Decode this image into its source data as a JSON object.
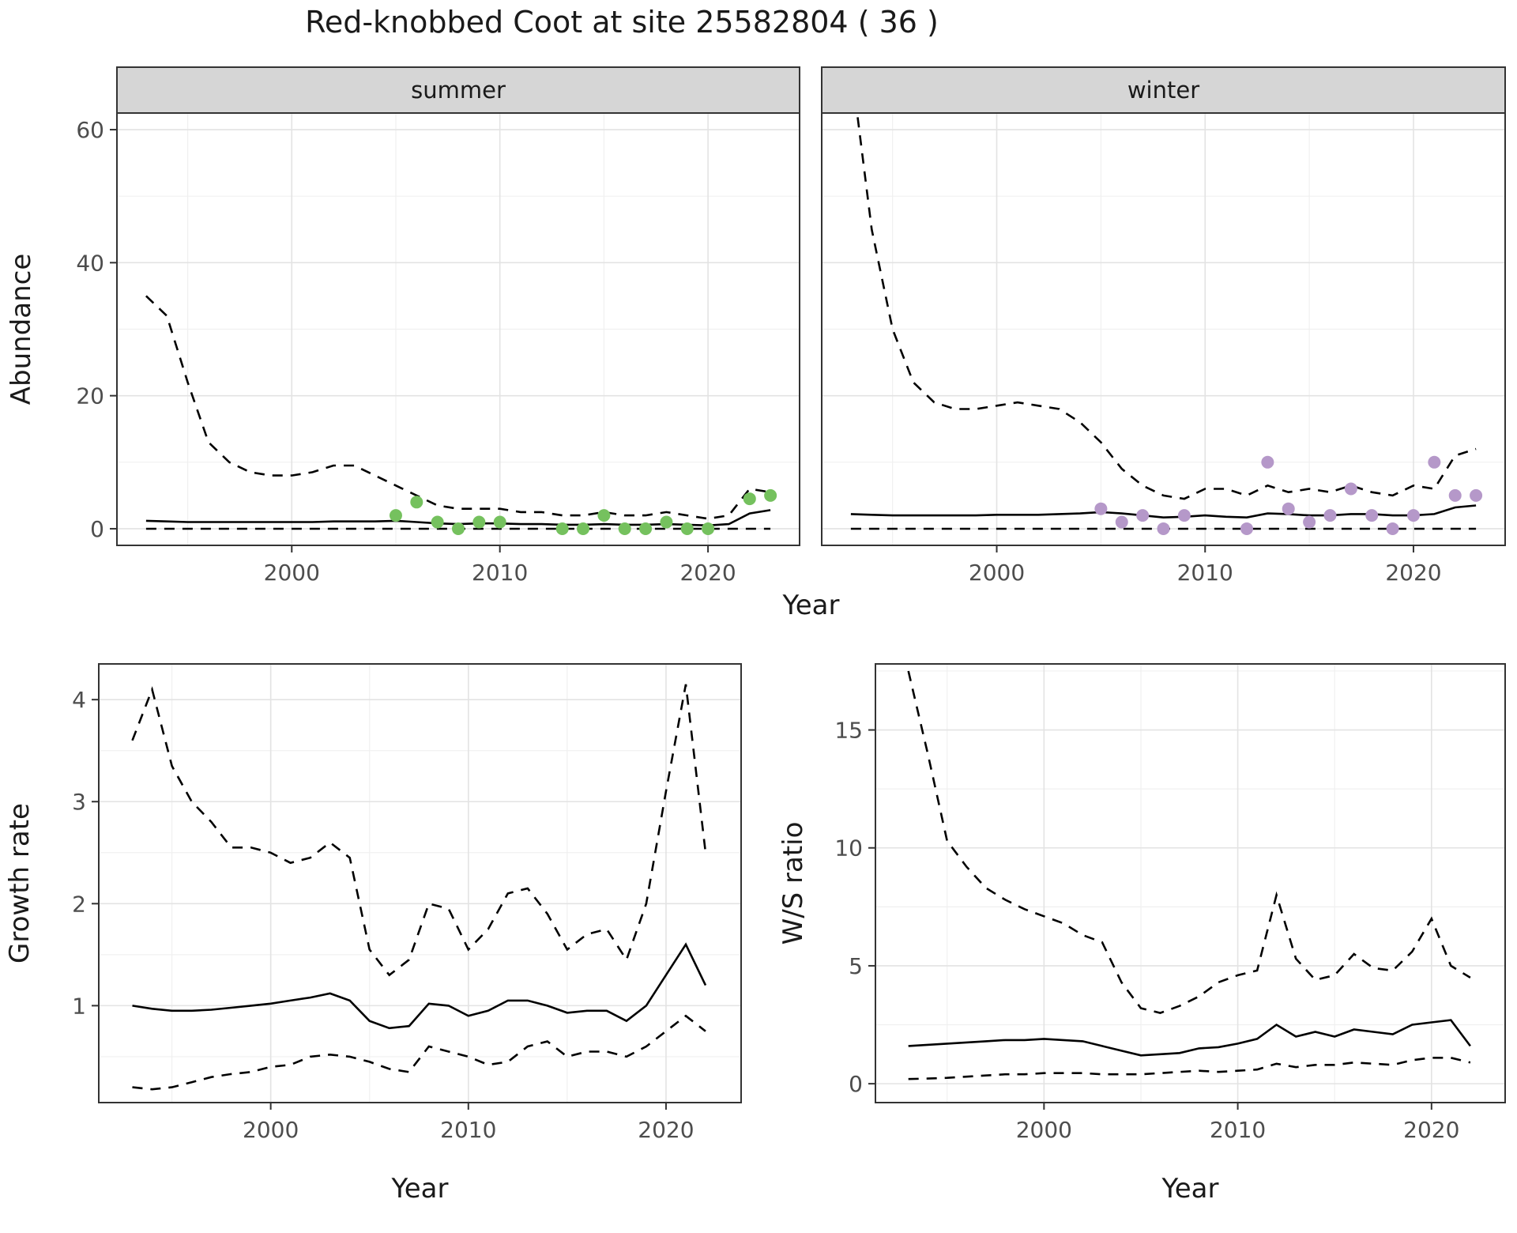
{
  "title": "Red-knobbed Coot at site 25582804 ( 36 )",
  "colors": {
    "summer_points": "#75c15e",
    "winter_points": "#b598c9",
    "line": "#000000",
    "strip_bg": "#d6d6d6",
    "grid_major": "#e3e3e3",
    "grid_minor": "#f0f0f0",
    "panel_border": "#333333",
    "axis_text": "#4d4d4d",
    "axis_title": "#1a1a1a"
  },
  "chart_data": [
    {
      "id": "abundance",
      "type": "line",
      "xlabel": "Year",
      "ylabel": "Abundance",
      "xlim": [
        1991.6,
        2024.4
      ],
      "ylim": [
        -2.5,
        62.5
      ],
      "xticks": [
        2000,
        2010,
        2020
      ],
      "yticks": [
        0,
        20,
        40,
        60
      ],
      "legend": "none",
      "grid": true,
      "panels": [
        {
          "facet": "summer",
          "point_color": "summer_points",
          "years": [
            1993,
            1994,
            1995,
            1996,
            1997,
            1998,
            1999,
            2000,
            2001,
            2002,
            2003,
            2004,
            2005,
            2006,
            2007,
            2008,
            2009,
            2010,
            2011,
            2012,
            2013,
            2014,
            2015,
            2016,
            2017,
            2018,
            2019,
            2020,
            2021,
            2022,
            2023
          ],
          "upper95": [
            35,
            32,
            22,
            13,
            10,
            8.5,
            8,
            8,
            8.5,
            9.5,
            9.5,
            8,
            6.5,
            5,
            3.5,
            3,
            3,
            3,
            2.5,
            2.5,
            2,
            2,
            2.5,
            2,
            2,
            2.5,
            2,
            1.5,
            2,
            6,
            5.5
          ],
          "median": [
            1.2,
            1.1,
            1.0,
            1.0,
            1.0,
            1.0,
            1.0,
            1.0,
            1.0,
            1.1,
            1.1,
            1.1,
            1.2,
            1.0,
            0.8,
            0.7,
            0.8,
            0.8,
            0.7,
            0.7,
            0.6,
            0.6,
            0.7,
            0.6,
            0.6,
            0.7,
            0.6,
            0.5,
            0.7,
            2.3,
            2.8
          ],
          "lower95": [
            0,
            0,
            0,
            0,
            0,
            0,
            0,
            0,
            0,
            0,
            0,
            0,
            0,
            0,
            0,
            0,
            0,
            0,
            0,
            0,
            0,
            0,
            0,
            0,
            0,
            0,
            0,
            0,
            0,
            0,
            0
          ],
          "points": {
            "x": [
              2005,
              2006,
              2007,
              2008,
              2009,
              2010,
              2013,
              2014,
              2015,
              2016,
              2017,
              2018,
              2019,
              2020,
              2022,
              2023
            ],
            "y": [
              2,
              4,
              1,
              0,
              1,
              1,
              0,
              0,
              2,
              0,
              0,
              1,
              0,
              0,
              4.5,
              5
            ]
          }
        },
        {
          "facet": "winter",
          "point_color": "winter_points",
          "years": [
            1993,
            1994,
            1995,
            1996,
            1997,
            1998,
            1999,
            2000,
            2001,
            2002,
            2003,
            2004,
            2005,
            2006,
            2007,
            2008,
            2009,
            2010,
            2011,
            2012,
            2013,
            2014,
            2015,
            2016,
            2017,
            2018,
            2019,
            2020,
            2021,
            2022,
            2023
          ],
          "upper95": [
            70,
            45,
            30,
            22,
            19,
            18,
            18,
            18.5,
            19,
            18.5,
            18,
            16,
            13,
            9,
            6.5,
            5,
            4.5,
            6,
            6,
            5,
            6.5,
            5.5,
            6,
            5.5,
            6.5,
            5.5,
            5,
            6.5,
            6,
            11,
            12
          ],
          "median": [
            2.2,
            2.1,
            2.0,
            2.0,
            2.0,
            2.0,
            2.0,
            2.1,
            2.1,
            2.1,
            2.2,
            2.3,
            2.5,
            2.3,
            2.0,
            1.7,
            1.8,
            2.0,
            1.8,
            1.7,
            2.3,
            2.2,
            2.0,
            2.0,
            2.2,
            2.2,
            2.0,
            2.0,
            2.2,
            3.2,
            3.5
          ],
          "lower95": [
            0,
            0,
            0,
            0,
            0,
            0,
            0,
            0,
            0,
            0,
            0,
            0,
            0,
            0,
            0,
            0,
            0,
            0,
            0,
            0,
            0,
            0,
            0,
            0,
            0,
            0,
            0,
            0,
            0,
            0,
            0
          ],
          "points": {
            "x": [
              2005,
              2006,
              2007,
              2008,
              2009,
              2012,
              2013,
              2014,
              2015,
              2016,
              2017,
              2018,
              2019,
              2020,
              2021,
              2022,
              2023
            ],
            "y": [
              3,
              1,
              2,
              0,
              2,
              0,
              10,
              3,
              1,
              2,
              6,
              2,
              0,
              2,
              10,
              5,
              5
            ]
          }
        }
      ]
    },
    {
      "id": "growth_rate",
      "type": "line",
      "xlabel": "Year",
      "ylabel": "Growth rate",
      "xlim": [
        1991.3,
        2023.8
      ],
      "ylim": [
        0.05,
        4.35
      ],
      "xticks": [
        2000,
        2010,
        2020
      ],
      "yticks": [
        1,
        2,
        3,
        4
      ],
      "legend": "none",
      "grid": true,
      "panels": [
        {
          "facet": null,
          "years": [
            1993,
            1994,
            1995,
            1996,
            1997,
            1998,
            1999,
            2000,
            2001,
            2002,
            2003,
            2004,
            2005,
            2006,
            2007,
            2008,
            2009,
            2010,
            2011,
            2012,
            2013,
            2014,
            2015,
            2016,
            2017,
            2018,
            2019,
            2020,
            2021,
            2022
          ],
          "upper95": [
            3.6,
            4.1,
            3.35,
            3.0,
            2.8,
            2.55,
            2.55,
            2.5,
            2.4,
            2.45,
            2.6,
            2.45,
            1.55,
            1.3,
            1.45,
            2.0,
            1.95,
            1.55,
            1.75,
            2.1,
            2.15,
            1.9,
            1.55,
            1.7,
            1.75,
            1.45,
            2.0,
            3.1,
            4.15,
            2.5
          ],
          "median": [
            1.0,
            0.97,
            0.95,
            0.95,
            0.96,
            0.98,
            1.0,
            1.02,
            1.05,
            1.08,
            1.12,
            1.05,
            0.85,
            0.78,
            0.8,
            1.02,
            1.0,
            0.9,
            0.95,
            1.05,
            1.05,
            1.0,
            0.93,
            0.95,
            0.95,
            0.85,
            1.0,
            1.3,
            1.6,
            1.2
          ],
          "lower95": [
            0.2,
            0.18,
            0.2,
            0.25,
            0.3,
            0.33,
            0.35,
            0.4,
            0.42,
            0.5,
            0.52,
            0.5,
            0.45,
            0.38,
            0.35,
            0.6,
            0.55,
            0.5,
            0.42,
            0.45,
            0.6,
            0.65,
            0.5,
            0.55,
            0.55,
            0.5,
            0.6,
            0.75,
            0.9,
            0.75
          ]
        }
      ]
    },
    {
      "id": "ws_ratio",
      "type": "line",
      "xlabel": "Year",
      "ylabel": "W/S ratio",
      "xlim": [
        1991.3,
        2023.8
      ],
      "ylim": [
        -0.8,
        17.8
      ],
      "xticks": [
        2000,
        2010,
        2020
      ],
      "yticks": [
        0,
        5,
        10,
        15
      ],
      "legend": "none",
      "grid": true,
      "panels": [
        {
          "facet": null,
          "years": [
            1993,
            1994,
            1995,
            1996,
            1997,
            1998,
            1999,
            2000,
            2001,
            2002,
            2003,
            2004,
            2005,
            2006,
            2007,
            2008,
            2009,
            2010,
            2011,
            2012,
            2013,
            2014,
            2015,
            2016,
            2017,
            2018,
            2019,
            2020,
            2021,
            2022
          ],
          "upper95": [
            17.5,
            14,
            10.3,
            9.2,
            8.3,
            7.8,
            7.4,
            7.1,
            6.8,
            6.3,
            6.0,
            4.3,
            3.2,
            3.0,
            3.3,
            3.7,
            4.3,
            4.6,
            4.8,
            8.0,
            5.3,
            4.4,
            4.6,
            5.5,
            4.9,
            4.8,
            5.6,
            7.0,
            5.0,
            4.5
          ],
          "median": [
            1.6,
            1.65,
            1.7,
            1.75,
            1.8,
            1.85,
            1.85,
            1.9,
            1.85,
            1.8,
            1.6,
            1.4,
            1.2,
            1.25,
            1.3,
            1.5,
            1.55,
            1.7,
            1.9,
            2.5,
            2.0,
            2.2,
            2.0,
            2.3,
            2.2,
            2.1,
            2.5,
            2.6,
            2.7,
            1.6
          ],
          "lower95": [
            0.2,
            0.22,
            0.25,
            0.3,
            0.35,
            0.4,
            0.4,
            0.45,
            0.45,
            0.45,
            0.4,
            0.4,
            0.4,
            0.45,
            0.5,
            0.55,
            0.5,
            0.55,
            0.6,
            0.85,
            0.7,
            0.8,
            0.8,
            0.9,
            0.85,
            0.8,
            1.0,
            1.1,
            1.1,
            0.9
          ]
        }
      ]
    }
  ]
}
